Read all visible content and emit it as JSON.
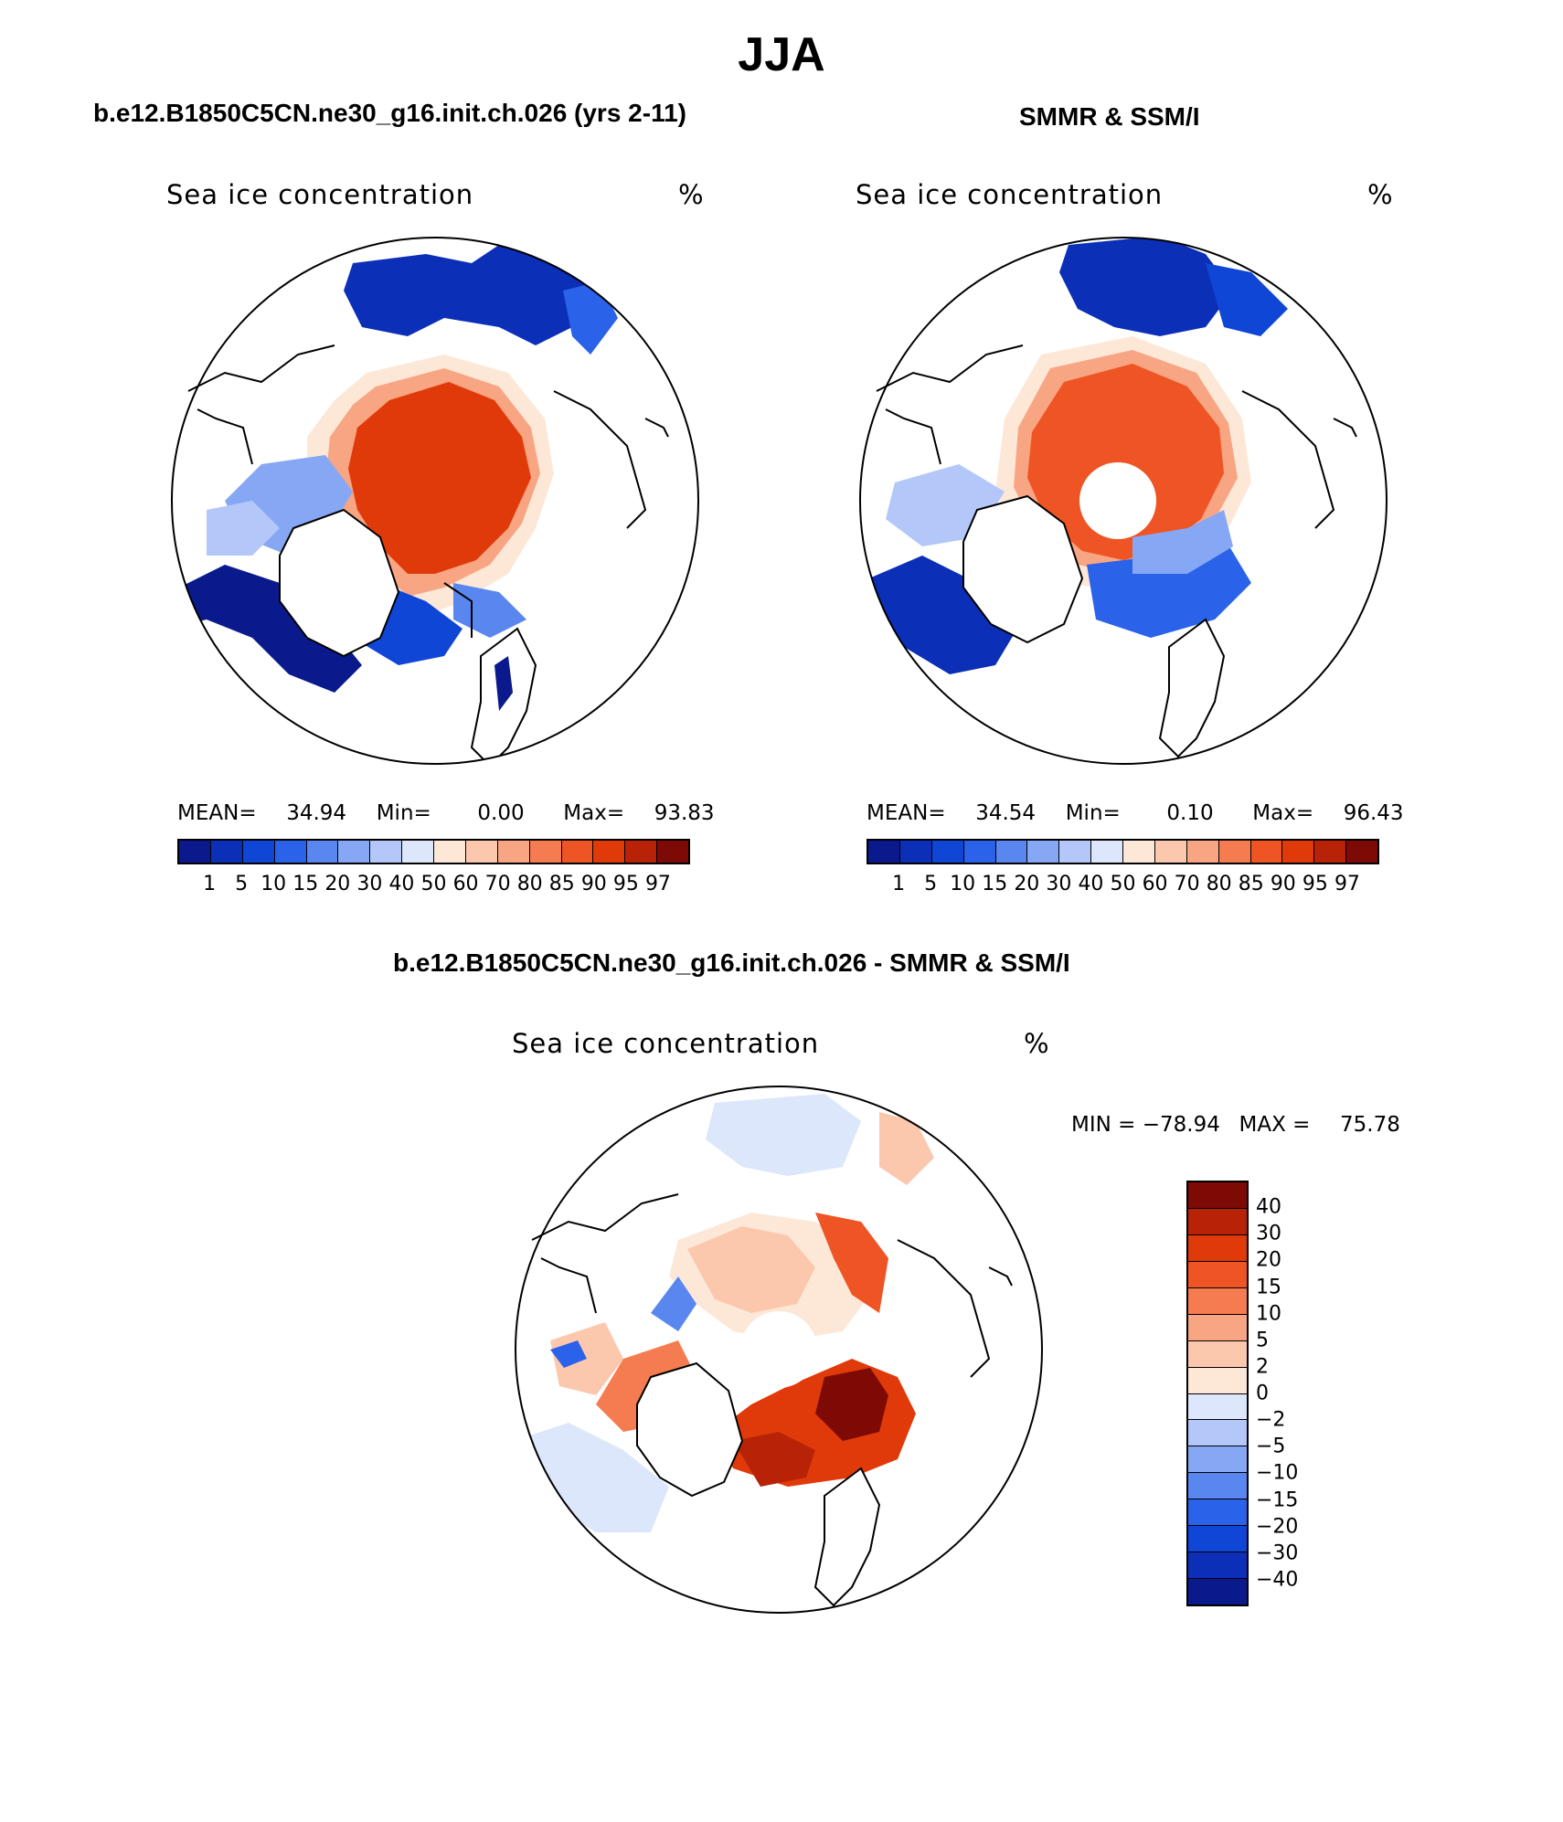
{
  "title": "JJA",
  "panels": [
    {
      "title": "b.e12.B1850C5CN.ne30_g16.init.ch.026 (yrs 2-11)",
      "variable": "Sea ice concentration",
      "units": "%",
      "stats": {
        "mean_label": "MEAN=",
        "mean": "34.94",
        "min_label": "Min=",
        "min": "0.00",
        "max_label": "Max=",
        "max": "93.83"
      }
    },
    {
      "title": "SMMR & SSM/I",
      "variable": "Sea ice concentration",
      "units": "%",
      "stats": {
        "mean_label": "MEAN=",
        "mean": "34.54",
        "min_label": "Min=",
        "min": "0.10",
        "max_label": "Max=",
        "max": "96.43"
      }
    },
    {
      "title": "b.e12.B1850C5CN.ne30_g16.init.ch.026 - SMMR & SSM/I",
      "variable": "Sea ice concentration",
      "units": "%",
      "stats": {
        "min_label": "MIN =",
        "min": "−78.94",
        "max_label": "MAX =",
        "max": "75.78"
      }
    }
  ],
  "conc_colorbar": {
    "levels": [
      "1",
      "5",
      "10",
      "15",
      "20",
      "30",
      "40",
      "50",
      "60",
      "70",
      "80",
      "85",
      "90",
      "95",
      "97"
    ],
    "colors": [
      "#0a1a8c",
      "#0c2fb8",
      "#1046d6",
      "#2a62ea",
      "#5a86f0",
      "#86a8f4",
      "#b3c8f8",
      "#dce7fb",
      "#fde8d8",
      "#fbc8ae",
      "#f8a583",
      "#f57c50",
      "#ef5424",
      "#e03a0a",
      "#b82308",
      "#7d0a04"
    ]
  },
  "diff_colorbar": {
    "levels": [
      "40",
      "30",
      "20",
      "15",
      "10",
      "5",
      "2",
      "0",
      "−2",
      "−5",
      "−10",
      "−15",
      "−20",
      "−30",
      "−40"
    ],
    "colors": [
      "#7d0a04",
      "#b82308",
      "#e03a0a",
      "#ef5424",
      "#f57c50",
      "#f8a583",
      "#fbc8ae",
      "#fde8d8",
      "#dce7fb",
      "#b3c8f8",
      "#86a8f4",
      "#5a86f0",
      "#2a62ea",
      "#1046d6",
      "#0c2fb8",
      "#0a1a8c"
    ]
  }
}
